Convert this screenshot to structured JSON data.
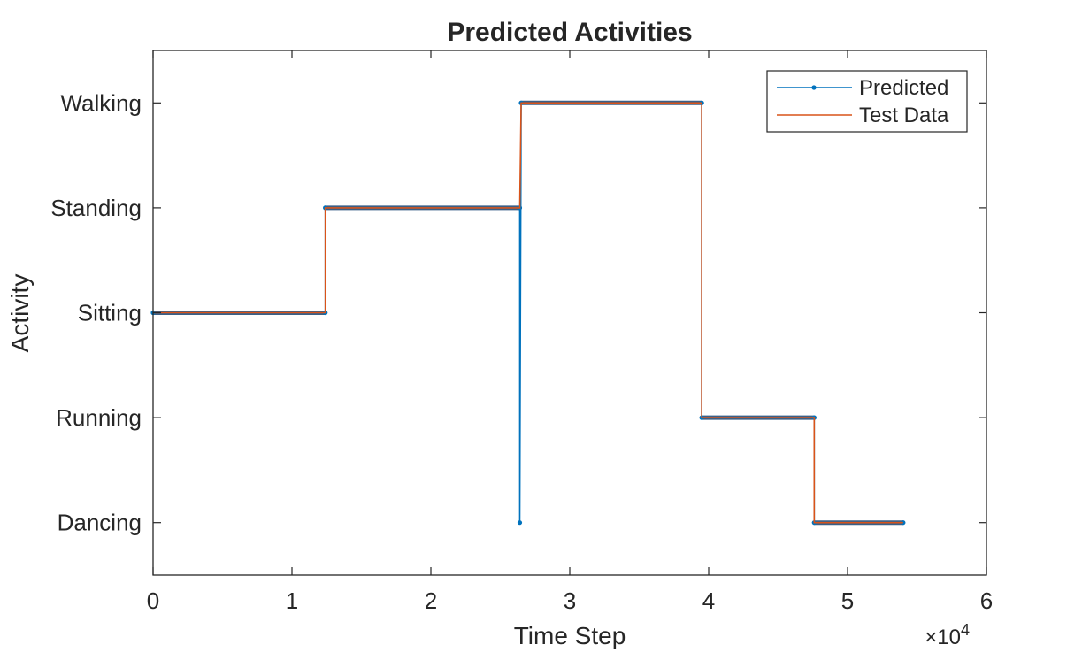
{
  "chart_data": {
    "type": "line",
    "title": "Predicted Activities",
    "xlabel": "Time Step",
    "ylabel": "Activity",
    "x_exponent_label": "×10",
    "x_exponent_power": "4",
    "xlim": [
      0,
      60000
    ],
    "x_ticks": [
      0,
      10000,
      20000,
      30000,
      40000,
      50000,
      60000
    ],
    "x_tick_labels": [
      "0",
      "1",
      "2",
      "3",
      "4",
      "5",
      "6"
    ],
    "ylim": [
      0.5,
      5.5
    ],
    "categories": [
      "Dancing",
      "Running",
      "Sitting",
      "Standing",
      "Walking"
    ],
    "legend_position": "top-right",
    "grid": false,
    "series": [
      {
        "name": "Predicted",
        "color": "#0072BD",
        "marker": "dot",
        "points": [
          [
            0,
            "Sitting"
          ],
          [
            12400,
            "Sitting"
          ],
          [
            12400,
            "Standing"
          ],
          [
            26400,
            "Standing"
          ],
          [
            26400,
            "Dancing"
          ],
          [
            26500,
            "Walking"
          ],
          [
            39500,
            "Walking"
          ],
          [
            39500,
            "Running"
          ],
          [
            47600,
            "Running"
          ],
          [
            47600,
            "Dancing"
          ],
          [
            54000,
            "Dancing"
          ]
        ]
      },
      {
        "name": "Test Data",
        "color": "#D95319",
        "marker": "none",
        "points": [
          [
            0,
            "Sitting"
          ],
          [
            12400,
            "Sitting"
          ],
          [
            12400,
            "Standing"
          ],
          [
            26400,
            "Standing"
          ],
          [
            26500,
            "Walking"
          ],
          [
            39500,
            "Walking"
          ],
          [
            39500,
            "Running"
          ],
          [
            47600,
            "Running"
          ],
          [
            47600,
            "Dancing"
          ],
          [
            54000,
            "Dancing"
          ]
        ]
      }
    ]
  }
}
